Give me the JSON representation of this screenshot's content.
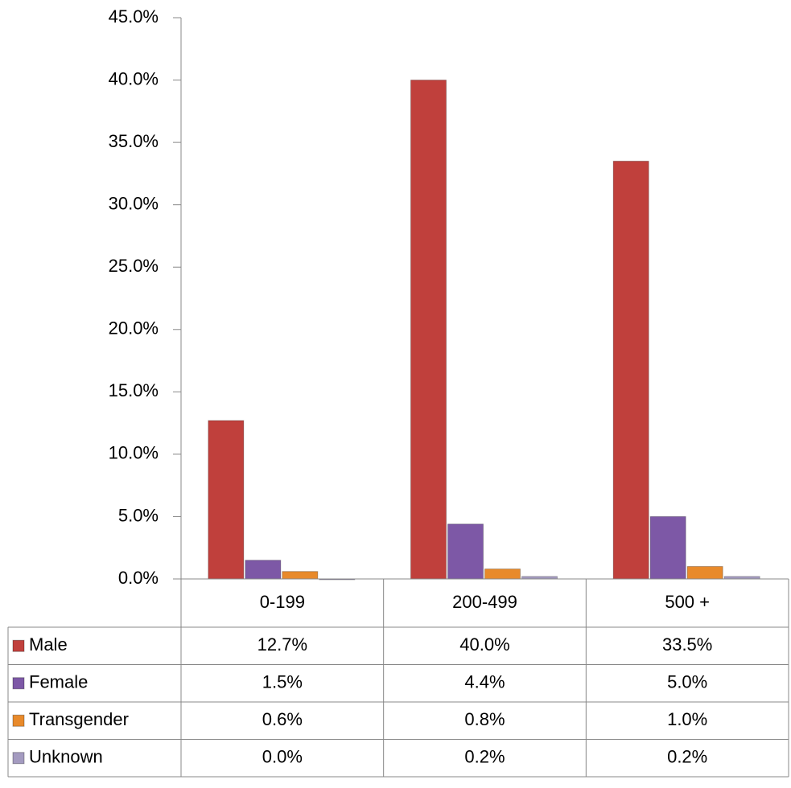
{
  "chart_data": {
    "type": "bar",
    "categories": [
      "0-199",
      "200-499",
      "500 +"
    ],
    "series": [
      {
        "name": "Male",
        "color": "#c0403c",
        "values": [
          12.7,
          40.0,
          33.5
        ],
        "value_labels": [
          "12.7%",
          "40.0%",
          "33.5%"
        ]
      },
      {
        "name": "Female",
        "color": "#7d58a6",
        "values": [
          1.5,
          4.4,
          5.0
        ],
        "value_labels": [
          "1.5%",
          "4.4%",
          "5.0%"
        ]
      },
      {
        "name": "Transgender",
        "color": "#e88a2b",
        "values": [
          0.6,
          0.8,
          1.0
        ],
        "value_labels": [
          "0.6%",
          "0.8%",
          "1.0%"
        ]
      },
      {
        "name": "Unknown",
        "color": "#a49bc0",
        "values": [
          0.0,
          0.2,
          0.2
        ],
        "value_labels": [
          "0.0%",
          "0.2%",
          "0.2%"
        ]
      }
    ],
    "ylim": [
      0,
      45
    ],
    "yticks": [
      {
        "value": 0,
        "label": "0.0%"
      },
      {
        "value": 5,
        "label": "5.0%"
      },
      {
        "value": 10,
        "label": "10.0%"
      },
      {
        "value": 15,
        "label": "15.0%"
      },
      {
        "value": 20,
        "label": "20.0%"
      },
      {
        "value": 25,
        "label": "25.0%"
      },
      {
        "value": 30,
        "label": "30.0%"
      },
      {
        "value": 35,
        "label": "35.0%"
      },
      {
        "value": 40,
        "label": "40.0%"
      },
      {
        "value": 45,
        "label": "45.0%"
      }
    ],
    "data_table": true
  }
}
